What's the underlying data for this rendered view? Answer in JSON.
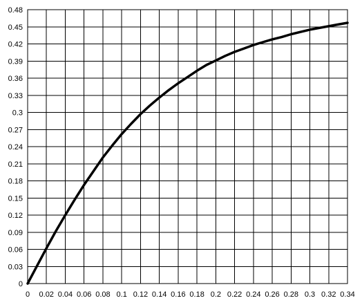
{
  "chart_data": {
    "type": "line",
    "title": "",
    "xlabel": "",
    "ylabel": "",
    "xlim": [
      0,
      0.34
    ],
    "ylim": [
      0,
      0.48
    ],
    "grid": true,
    "x_ticks": [
      "0",
      "0.02",
      "0.04",
      "0.06",
      "0.08",
      "0.1",
      "0.12",
      "0.14",
      "0.16",
      "0.18",
      "0.2",
      "0.22",
      "0.24",
      "0.26",
      "0.28",
      "0.3",
      "0.32",
      "0.34"
    ],
    "y_ticks": [
      "0",
      "0.03",
      "0.06",
      "0.09",
      "0.12",
      "0.15",
      "0.18",
      "0.21",
      "0.24",
      "0.27",
      "0.3",
      "0.33",
      "0.36",
      "0.39",
      "0.42",
      "0.45",
      "0.48"
    ],
    "colors": {
      "line": "#000000",
      "grid": "#000000",
      "background": "#ffffff"
    },
    "series": [
      {
        "x": [
          0,
          0.01,
          0.02,
          0.03,
          0.04,
          0.05,
          0.06,
          0.07,
          0.08,
          0.09,
          0.1,
          0.11,
          0.12,
          0.13,
          0.14,
          0.15,
          0.16,
          0.17,
          0.18,
          0.19,
          0.2,
          0.21,
          0.22,
          0.23,
          0.24,
          0.25,
          0.26,
          0.27,
          0.28,
          0.29,
          0.3,
          0.31,
          0.32,
          0.33,
          0.34
        ],
        "y": [
          0,
          0.031,
          0.062,
          0.092,
          0.12,
          0.147,
          0.173,
          0.197,
          0.221,
          0.242,
          0.262,
          0.28,
          0.297,
          0.312,
          0.326,
          0.339,
          0.351,
          0.362,
          0.373,
          0.383,
          0.391,
          0.399,
          0.406,
          0.412,
          0.418,
          0.423,
          0.428,
          0.432,
          0.437,
          0.441,
          0.445,
          0.448,
          0.451,
          0.454,
          0.457
        ]
      }
    ]
  }
}
